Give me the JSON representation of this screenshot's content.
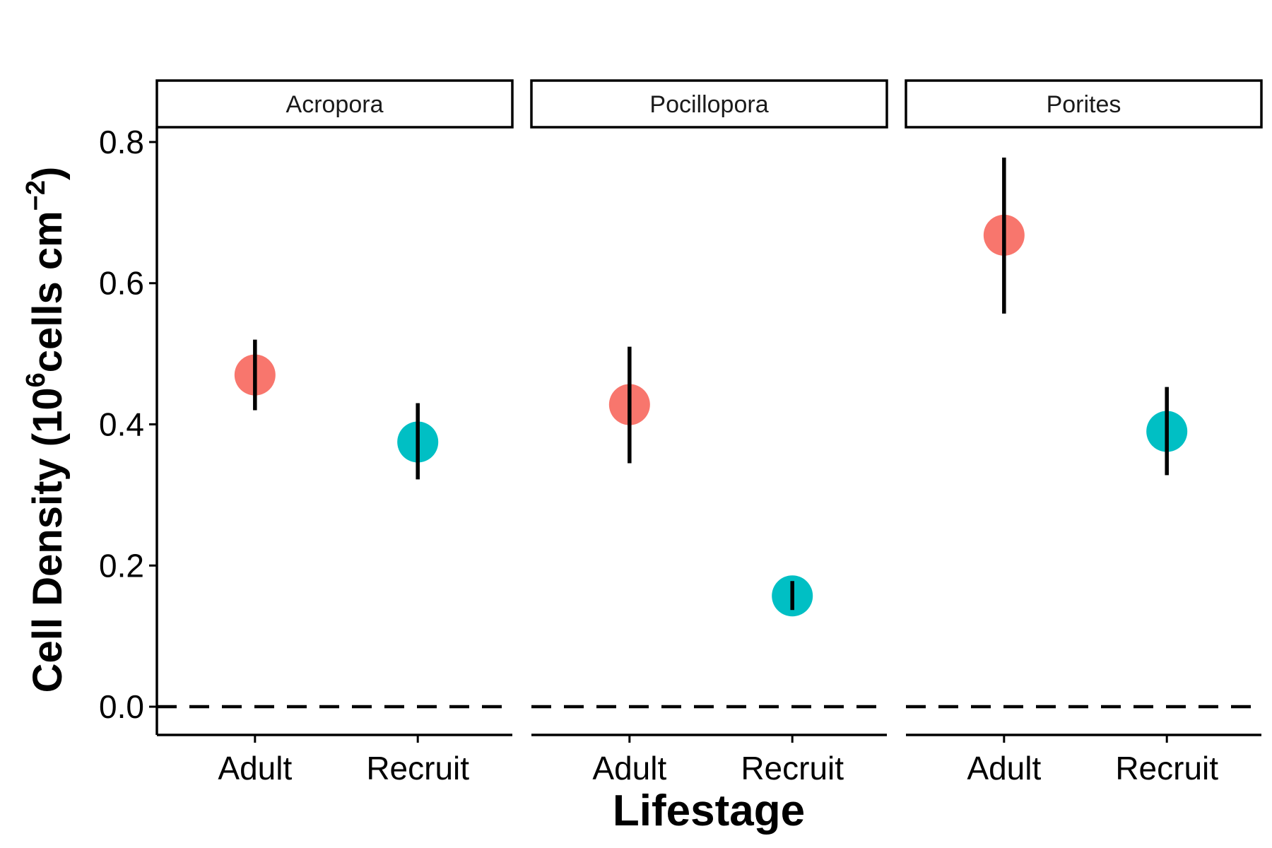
{
  "chart_data": {
    "type": "scatter",
    "facet_variable": "Genus",
    "facets": [
      "Acropora",
      "Pocillopora",
      "Porites"
    ],
    "categories": [
      "Adult",
      "Recruit"
    ],
    "xlabel": "Lifestage",
    "ylabel": {
      "prefix": "Cell Density (10",
      "sup1": "6",
      "middle": "cells cm",
      "sup2": "−2",
      "suffix": ")"
    },
    "ylim": [
      -0.04,
      0.82
    ],
    "yticks": [
      0.0,
      0.2,
      0.4,
      0.6,
      0.8
    ],
    "ytick_labels": [
      "0.0",
      "0.2",
      "0.4",
      "0.6",
      "0.8"
    ],
    "reference_line": {
      "y": 0.0,
      "style": "dashed"
    },
    "grid": false,
    "legend": "none",
    "colors": {
      "Adult": "#F8766D",
      "Recruit": "#00BFC4",
      "errorbar": "#000000"
    },
    "points": [
      {
        "facet": "Acropora",
        "lifestage": "Adult",
        "y": 0.47,
        "ymin": 0.42,
        "ymax": 0.52
      },
      {
        "facet": "Acropora",
        "lifestage": "Recruit",
        "y": 0.375,
        "ymin": 0.322,
        "ymax": 0.43
      },
      {
        "facet": "Pocillopora",
        "lifestage": "Adult",
        "y": 0.428,
        "ymin": 0.345,
        "ymax": 0.51
      },
      {
        "facet": "Pocillopora",
        "lifestage": "Recruit",
        "y": 0.157,
        "ymin": 0.137,
        "ymax": 0.178
      },
      {
        "facet": "Porites",
        "lifestage": "Adult",
        "y": 0.668,
        "ymin": 0.557,
        "ymax": 0.778
      },
      {
        "facet": "Porites",
        "lifestage": "Recruit",
        "y": 0.39,
        "ymin": 0.328,
        "ymax": 0.453
      }
    ]
  }
}
